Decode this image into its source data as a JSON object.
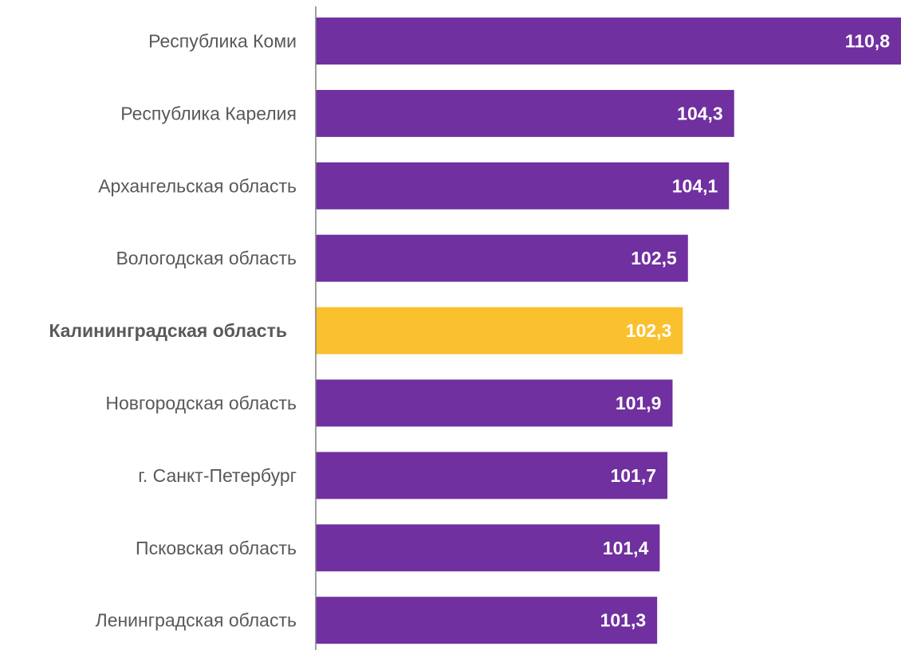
{
  "chart_data": {
    "type": "bar",
    "orientation": "horizontal",
    "categories": [
      "Республика Коми",
      "Республика Карелия",
      "Архангельская область",
      "Вологодская область",
      "Калининградская область",
      "Новгородская область",
      "г. Санкт-Петербург",
      "Псковская область",
      "Ленинградская область"
    ],
    "values": [
      110.8,
      104.3,
      104.1,
      102.5,
      102.3,
      101.9,
      101.7,
      101.4,
      101.3
    ],
    "value_labels": [
      "110,8",
      "104,3",
      "104,1",
      "102,5",
      "102,3",
      "101,9",
      "101,7",
      "101,4",
      "101,3"
    ],
    "highlight_index": 4,
    "colors": {
      "bar": "#7030a0",
      "highlight": "#fbc02d",
      "axis": "#808080",
      "label": "#595959",
      "value_label": "#ffffff"
    },
    "xlim": [
      88,
      110.8
    ],
    "grid": false,
    "legend": "none"
  }
}
